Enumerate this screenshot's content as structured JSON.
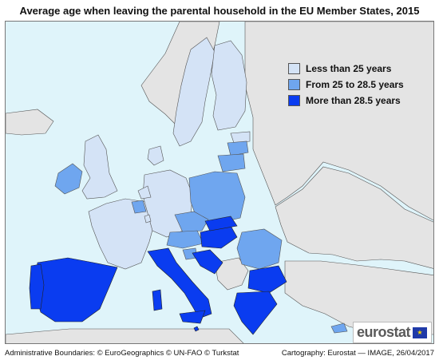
{
  "title": "Average age when leaving the parental household in the EU Member States, 2015",
  "legend": [
    {
      "label": "Less than 25 years",
      "color": "#d4e3f6"
    },
    {
      "label": "From 25 to 28.5 years",
      "color": "#6fa6ef"
    },
    {
      "label": "More than 28.5 years",
      "color": "#0a3cf0"
    }
  ],
  "colors": {
    "sea": "#dff4fa",
    "non_eu_land": "#e4e4e4",
    "border": "#555555"
  },
  "countries": {
    "less_than_25": [
      "Sweden",
      "Finland",
      "Denmark",
      "Estonia",
      "United Kingdom",
      "France",
      "Germany",
      "Netherlands",
      "Luxembourg"
    ],
    "from_25_to_28_5": [
      "Ireland",
      "Belgium",
      "Latvia",
      "Lithuania",
      "Poland",
      "Czech Republic",
      "Austria",
      "Slovenia",
      "Romania",
      "Cyprus"
    ],
    "more_than_28_5": [
      "Spain",
      "Portugal",
      "Italy",
      "Malta",
      "Croatia",
      "Hungary",
      "Slovakia",
      "Bulgaria",
      "Greece"
    ]
  },
  "logo": {
    "text": "eurostat",
    "flag_icon": "eu-flag-icon"
  },
  "footer": {
    "left": "Administrative Boundaries: © EuroGeographics © UN-FAO © Turkstat",
    "right": "Cartography: Eurostat — IMAGE, 26/04/2017"
  }
}
